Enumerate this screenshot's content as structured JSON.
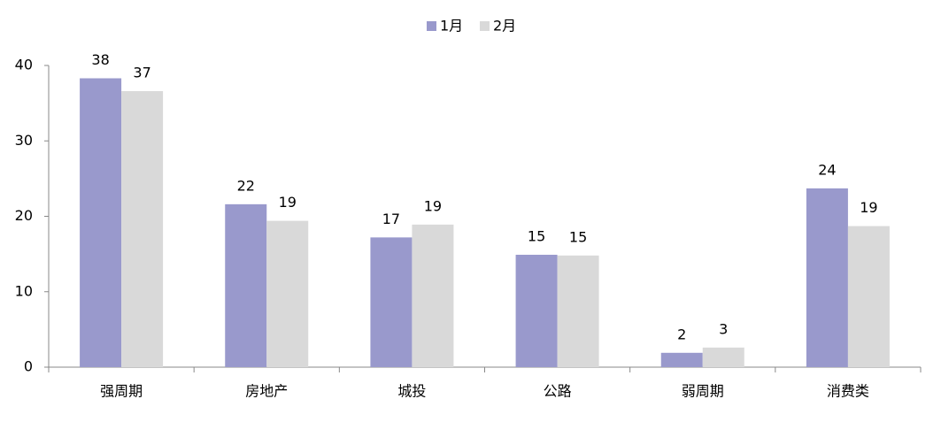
{
  "chart_data": {
    "type": "bar",
    "categories": [
      "强周期",
      "房地产",
      "城投",
      "公路",
      "弱周期",
      "消费类"
    ],
    "series": [
      {
        "name": "1月",
        "color": "#9999cc",
        "values": [
          38.3,
          21.6,
          17.2,
          14.9,
          1.9,
          23.7
        ],
        "value_labels": [
          "38",
          "22",
          "17",
          "15",
          "2",
          "24"
        ]
      },
      {
        "name": "2月",
        "color": "#d9d9d9",
        "values": [
          36.6,
          19.4,
          18.9,
          14.8,
          2.6,
          18.7
        ],
        "value_labels": [
          "37",
          "19",
          "19",
          "15",
          "3",
          "19"
        ]
      }
    ],
    "ylim": [
      0,
      40
    ],
    "yticks": [
      0,
      10,
      20,
      30,
      40
    ],
    "legend": "top"
  }
}
